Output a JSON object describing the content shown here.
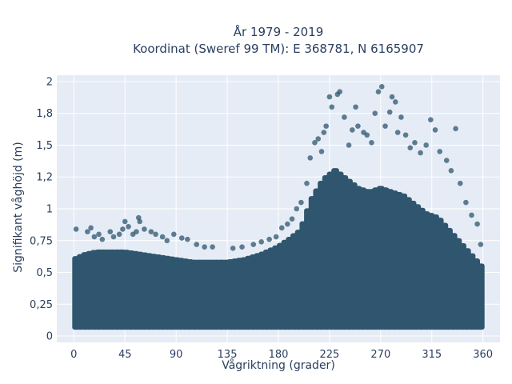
{
  "chart_data": {
    "type": "scatter",
    "title": [
      "År 1979 - 2019",
      "Koordinat (Sweref 99 TM): E 368781, N 6165907"
    ],
    "xlabel": "Vågriktning (grader)",
    "ylabel": "Signifikant våghöjd (m)",
    "xlim": [
      -15,
      375
    ],
    "ylim": [
      -0.05,
      2.05
    ],
    "x_ticks": [
      0,
      45,
      90,
      135,
      180,
      225,
      270,
      315,
      360
    ],
    "x_tick_labels": [
      "0",
      "45",
      "90",
      "135",
      "180",
      "225",
      "270",
      "315",
      "360"
    ],
    "y_ticks": [
      0,
      0.25,
      0.5,
      0.75,
      1,
      1.25,
      1.5,
      1.75,
      2
    ],
    "y_tick_labels": [
      "0",
      "0,25",
      "0,5",
      "0,75",
      "1",
      "1,2",
      "1,5",
      "1,8",
      "2"
    ],
    "grid": true,
    "marker_color": "#2f566e",
    "plot_background": "#e5ecf6",
    "series": [
      {
        "dense_envelope": {
          "x": [
            0,
            10,
            20,
            30,
            45,
            60,
            75,
            90,
            105,
            120,
            135,
            150,
            165,
            180,
            190,
            200,
            205,
            210,
            220,
            230,
            240,
            250,
            260,
            270,
            280,
            290,
            300,
            310,
            320,
            330,
            340,
            350,
            360
          ],
          "y_min": [
            0.05,
            0.05,
            0.05,
            0.05,
            0.05,
            0.05,
            0.05,
            0.05,
            0.05,
            0.05,
            0.05,
            0.05,
            0.05,
            0.05,
            0.05,
            0.05,
            0.05,
            0.05,
            0.05,
            0.05,
            0.05,
            0.05,
            0.05,
            0.05,
            0.05,
            0.05,
            0.05,
            0.05,
            0.05,
            0.05,
            0.05,
            0.05,
            0.05
          ],
          "y_max": [
            0.62,
            0.66,
            0.68,
            0.68,
            0.68,
            0.66,
            0.64,
            0.62,
            0.6,
            0.6,
            0.6,
            0.62,
            0.66,
            0.72,
            0.78,
            0.85,
            0.98,
            1.1,
            1.25,
            1.32,
            1.25,
            1.18,
            1.15,
            1.18,
            1.15,
            1.12,
            1.05,
            0.98,
            0.95,
            0.85,
            0.75,
            0.65,
            0.55
          ]
        },
        "outliers": [
          [
            2,
            0.84
          ],
          [
            12,
            0.82
          ],
          [
            15,
            0.85
          ],
          [
            18,
            0.78
          ],
          [
            22,
            0.8
          ],
          [
            25,
            0.76
          ],
          [
            32,
            0.82
          ],
          [
            35,
            0.78
          ],
          [
            40,
            0.8
          ],
          [
            43,
            0.84
          ],
          [
            45,
            0.9
          ],
          [
            48,
            0.86
          ],
          [
            52,
            0.8
          ],
          [
            55,
            0.82
          ],
          [
            57,
            0.93
          ],
          [
            58,
            0.9
          ],
          [
            62,
            0.84
          ],
          [
            68,
            0.82
          ],
          [
            72,
            0.8
          ],
          [
            78,
            0.78
          ],
          [
            82,
            0.75
          ],
          [
            88,
            0.8
          ],
          [
            95,
            0.77
          ],
          [
            100,
            0.76
          ],
          [
            108,
            0.72
          ],
          [
            115,
            0.7
          ],
          [
            122,
            0.7
          ],
          [
            140,
            0.69
          ],
          [
            148,
            0.7
          ],
          [
            158,
            0.72
          ],
          [
            165,
            0.74
          ],
          [
            172,
            0.76
          ],
          [
            178,
            0.78
          ],
          [
            183,
            0.85
          ],
          [
            188,
            0.88
          ],
          [
            192,
            0.92
          ],
          [
            196,
            1.0
          ],
          [
            200,
            1.05
          ],
          [
            205,
            1.2
          ],
          [
            208,
            1.4
          ],
          [
            212,
            1.52
          ],
          [
            215,
            1.55
          ],
          [
            218,
            1.45
          ],
          [
            220,
            1.6
          ],
          [
            222,
            1.65
          ],
          [
            225,
            1.88
          ],
          [
            227,
            1.8
          ],
          [
            232,
            1.9
          ],
          [
            234,
            1.92
          ],
          [
            238,
            1.72
          ],
          [
            242,
            1.5
          ],
          [
            245,
            1.62
          ],
          [
            248,
            1.8
          ],
          [
            250,
            1.65
          ],
          [
            255,
            1.6
          ],
          [
            258,
            1.58
          ],
          [
            262,
            1.52
          ],
          [
            265,
            1.75
          ],
          [
            268,
            1.92
          ],
          [
            271,
            1.96
          ],
          [
            274,
            1.65
          ],
          [
            278,
            1.76
          ],
          [
            280,
            1.88
          ],
          [
            283,
            1.84
          ],
          [
            285,
            1.6
          ],
          [
            288,
            1.72
          ],
          [
            292,
            1.58
          ],
          [
            296,
            1.48
          ],
          [
            300,
            1.52
          ],
          [
            305,
            1.44
          ],
          [
            310,
            1.5
          ],
          [
            314,
            1.7
          ],
          [
            318,
            1.62
          ],
          [
            322,
            1.45
          ],
          [
            328,
            1.38
          ],
          [
            332,
            1.3
          ],
          [
            336,
            1.63
          ],
          [
            340,
            1.2
          ],
          [
            345,
            1.05
          ],
          [
            350,
            0.95
          ],
          [
            355,
            0.88
          ],
          [
            358,
            0.72
          ]
        ]
      }
    ]
  }
}
